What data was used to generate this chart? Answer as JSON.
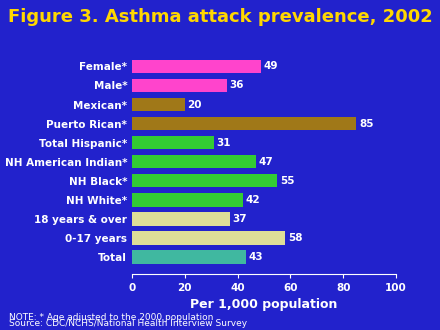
{
  "title": "Figure 3. Asthma attack prevalence, 2002",
  "title_color": "#FFD700",
  "background_color": "#2222CC",
  "categories": [
    "Total",
    "0-17 years",
    "18 years & over",
    "NH White*",
    "NH Black*",
    "NH American Indian*",
    "Total Hispanic*",
    "Puerto Rican*",
    "Mexican*",
    "Male*",
    "Female*"
  ],
  "values": [
    43,
    58,
    37,
    42,
    55,
    47,
    31,
    85,
    20,
    36,
    49
  ],
  "bar_colors": [
    "#40B8A0",
    "#DEDE98",
    "#DEDE98",
    "#33CC33",
    "#33CC33",
    "#33CC33",
    "#33CC33",
    "#A07818",
    "#A07818",
    "#FF44CC",
    "#FF44CC"
  ],
  "xlabel": "Per 1,000 population",
  "xlabel_color": "#FFFFFF",
  "xlim": [
    0,
    100
  ],
  "xticks": [
    0,
    20,
    40,
    60,
    80,
    100
  ],
  "note_line1": "NOTE: * Age adjusted to the 2000 population",
  "note_line2": "Source: CDC/NCHS/National Health Interview Survey",
  "tick_color": "#FFFFFF",
  "bar_label_color": "#FFFFFF",
  "axis_color": "#FFFFFF",
  "title_fontsize": 13,
  "label_fontsize": 7.5,
  "value_fontsize": 7.5,
  "note_fontsize": 6.5,
  "xlabel_fontsize": 9
}
